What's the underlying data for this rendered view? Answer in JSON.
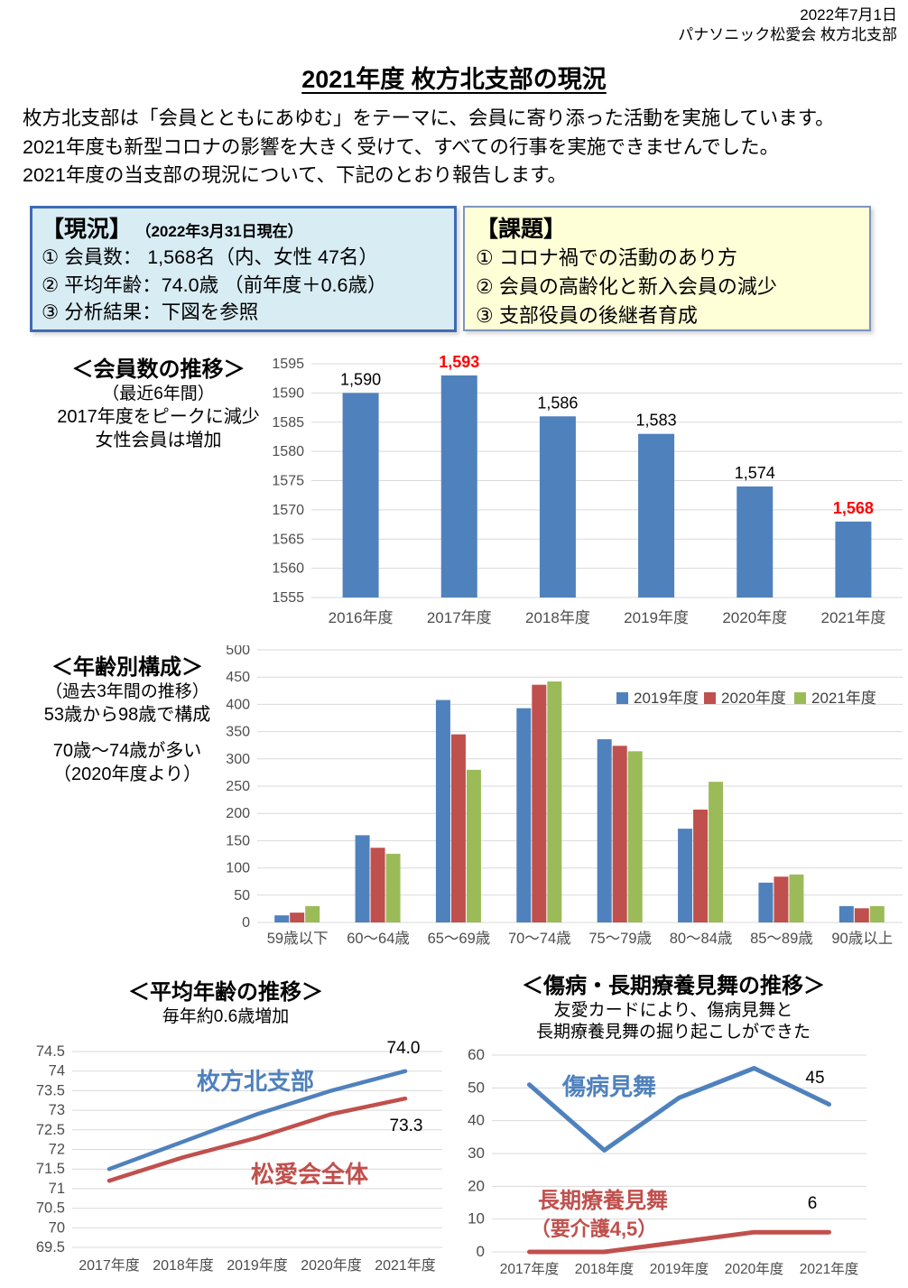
{
  "header": {
    "date": "2022年7月1日",
    "org": "パナソニック松愛会 枚方北支部"
  },
  "title": "2021年度 枚方北支部の現況",
  "intro_lines": [
    "枚方北支部は「会員とともにあゆむ」をテーマに、会員に寄り添った活動を実施しています。",
    "2021年度も新型コロナの影響を大きく受けて、すべての行事を実施できませんでした。",
    "2021年度の当支部の現況について、下記のとおり報告します。"
  ],
  "status_box": {
    "title": "【現況】",
    "date_note": "（2022年3月31日現在）",
    "items": [
      "① 会員数： 1,568名（内、女性 47名）",
      "② 平均年齢：74.0歳 （前年度＋0.6歳）",
      "③ 分析結果：下図を参照"
    ]
  },
  "issues_box": {
    "title": "【課題】",
    "items": [
      "① コロナ禍での活動のあり方",
      "② 会員の高齢化と新入会員の減少",
      "③ 支部役員の後継者育成"
    ]
  },
  "chart_data": [
    {
      "id": "members",
      "type": "bar",
      "title": "＜会員数の推移＞",
      "subtitle": "（最近6年間）",
      "notes": [
        "2017年度をピークに減少",
        "女性会員は増加"
      ],
      "categories": [
        "2016年度",
        "2017年度",
        "2018年度",
        "2019年度",
        "2020年度",
        "2021年度"
      ],
      "values": [
        1590,
        1593,
        1586,
        1583,
        1574,
        1568
      ],
      "labels": [
        "1,590",
        "1,593",
        "1,586",
        "1,583",
        "1,574",
        "1,568"
      ],
      "highlight_indexes": [
        1,
        5
      ],
      "bar_color": "#4F81BD",
      "highlight_color": "#FF0000",
      "ylim": [
        1555,
        1595
      ],
      "ytick_step": 5,
      "grid": true,
      "xlabel": "",
      "ylabel": ""
    },
    {
      "id": "age",
      "type": "bar",
      "title": "＜年齢別構成＞",
      "subtitle": "（過去3年間の推移）",
      "notes": [
        "53歳から98歳で構成",
        "70歳～74歳が多い",
        "（2020年度より）"
      ],
      "categories": [
        "59歳以下",
        "60～64歳",
        "65～69歳",
        "70～74歳",
        "75～79歳",
        "80～84歳",
        "85～89歳",
        "90歳以上"
      ],
      "series": [
        {
          "name": "2019年度",
          "color": "#4F81BD",
          "values": [
            13,
            160,
            408,
            393,
            336,
            172,
            73,
            30
          ]
        },
        {
          "name": "2020年度",
          "color": "#C0504D",
          "values": [
            18,
            137,
            345,
            436,
            324,
            207,
            84,
            26
          ]
        },
        {
          "name": "2021年度",
          "color": "#9BBB59",
          "values": [
            30,
            126,
            280,
            442,
            314,
            258,
            88,
            30
          ]
        }
      ],
      "ylim": [
        0,
        500
      ],
      "ytick_step": 50,
      "grid": true,
      "legend_position": "top-right-inside"
    },
    {
      "id": "avg_age",
      "type": "line",
      "title": "＜平均年齢の推移＞",
      "subtitle": "毎年約0.6歳増加",
      "categories": [
        "2017年度",
        "2018年度",
        "2019年度",
        "2020年度",
        "2021年度"
      ],
      "series": [
        {
          "name": "枚方北支部",
          "color": "#4F81BD",
          "values": [
            71.5,
            72.2,
            72.9,
            73.5,
            74.0
          ],
          "end_label": "74.0"
        },
        {
          "name": "松愛会全体",
          "color": "#C0504D",
          "values": [
            71.2,
            71.8,
            72.3,
            72.9,
            73.3
          ],
          "end_label": "73.3"
        }
      ],
      "ylim": [
        69.5,
        74.5
      ],
      "ytick_step": 0.5,
      "grid": true
    },
    {
      "id": "mimai",
      "type": "line",
      "title": "＜傷病・長期療養見舞の推移＞",
      "subtitle_lines": [
        "友愛カードにより、傷病見舞と",
        "長期療養見舞の掘り起こしができた"
      ],
      "categories": [
        "2017年度",
        "2018年度",
        "2019年度",
        "2020年度",
        "2021年度"
      ],
      "series": [
        {
          "name": "傷病見舞",
          "label_lines": [
            "傷病見舞"
          ],
          "color": "#4F81BD",
          "values": [
            51,
            31,
            47,
            56,
            45
          ],
          "end_label": "45"
        },
        {
          "name": "長期療養見舞（要介護4,5）",
          "label_lines": [
            "長期療養見舞",
            "（要介護4,5）"
          ],
          "color": "#C0504D",
          "values": [
            0,
            0,
            3,
            6,
            6
          ],
          "end_label": "6"
        }
      ],
      "ylim": [
        0,
        60
      ],
      "ytick_step": 10,
      "grid": true
    }
  ]
}
